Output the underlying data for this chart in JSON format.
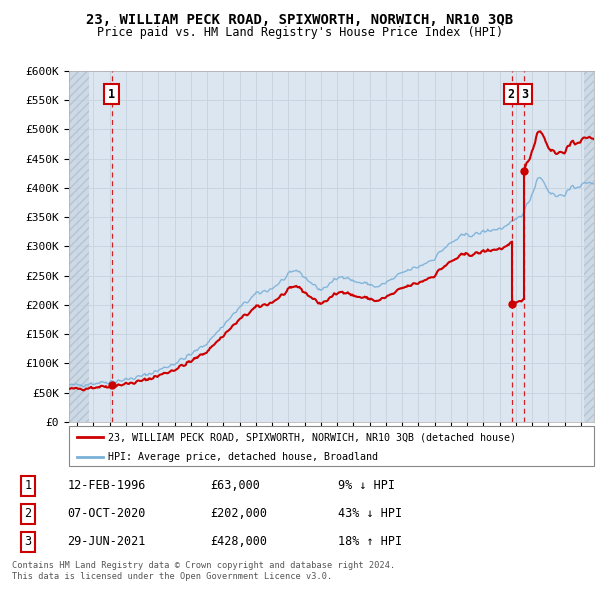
{
  "title": "23, WILLIAM PECK ROAD, SPIXWORTH, NORWICH, NR10 3QB",
  "subtitle": "Price paid vs. HM Land Registry's House Price Index (HPI)",
  "xmin": 1993.5,
  "xmax": 2025.8,
  "ymin": 0,
  "ymax": 600000,
  "yticks": [
    0,
    50000,
    100000,
    150000,
    200000,
    250000,
    300000,
    350000,
    400000,
    450000,
    500000,
    550000,
    600000
  ],
  "ytick_labels": [
    "£0",
    "£50K",
    "£100K",
    "£150K",
    "£200K",
    "£250K",
    "£300K",
    "£350K",
    "£400K",
    "£450K",
    "£500K",
    "£550K",
    "£600K"
  ],
  "sales": [
    {
      "date_label": "12-FEB-1996",
      "year": 1996.12,
      "price": 63000,
      "number": 1
    },
    {
      "date_label": "07-OCT-2020",
      "year": 2020.77,
      "price": 202000,
      "number": 2
    },
    {
      "date_label": "29-JUN-2021",
      "year": 2021.49,
      "price": 428000,
      "number": 3
    }
  ],
  "legend_line1": "23, WILLIAM PECK ROAD, SPIXWORTH, NORWICH, NR10 3QB (detached house)",
  "legend_line2": "HPI: Average price, detached house, Broadland",
  "footer1": "Contains HM Land Registry data © Crown copyright and database right 2024.",
  "footer2": "This data is licensed under the Open Government Licence v3.0.",
  "red_color": "#cc0000",
  "blue_color": "#7ab0d8",
  "bg_color": "#dce6f1",
  "hatch_left_end": 1994.7,
  "hatch_right_start": 2025.2,
  "table_rows": [
    [
      "1",
      "12-FEB-1996",
      "£63,000",
      "9% ↓ HPI"
    ],
    [
      "2",
      "07-OCT-2020",
      "£202,000",
      "43% ↓ HPI"
    ],
    [
      "3",
      "29-JUN-2021",
      "£428,000",
      "18% ↑ HPI"
    ]
  ]
}
